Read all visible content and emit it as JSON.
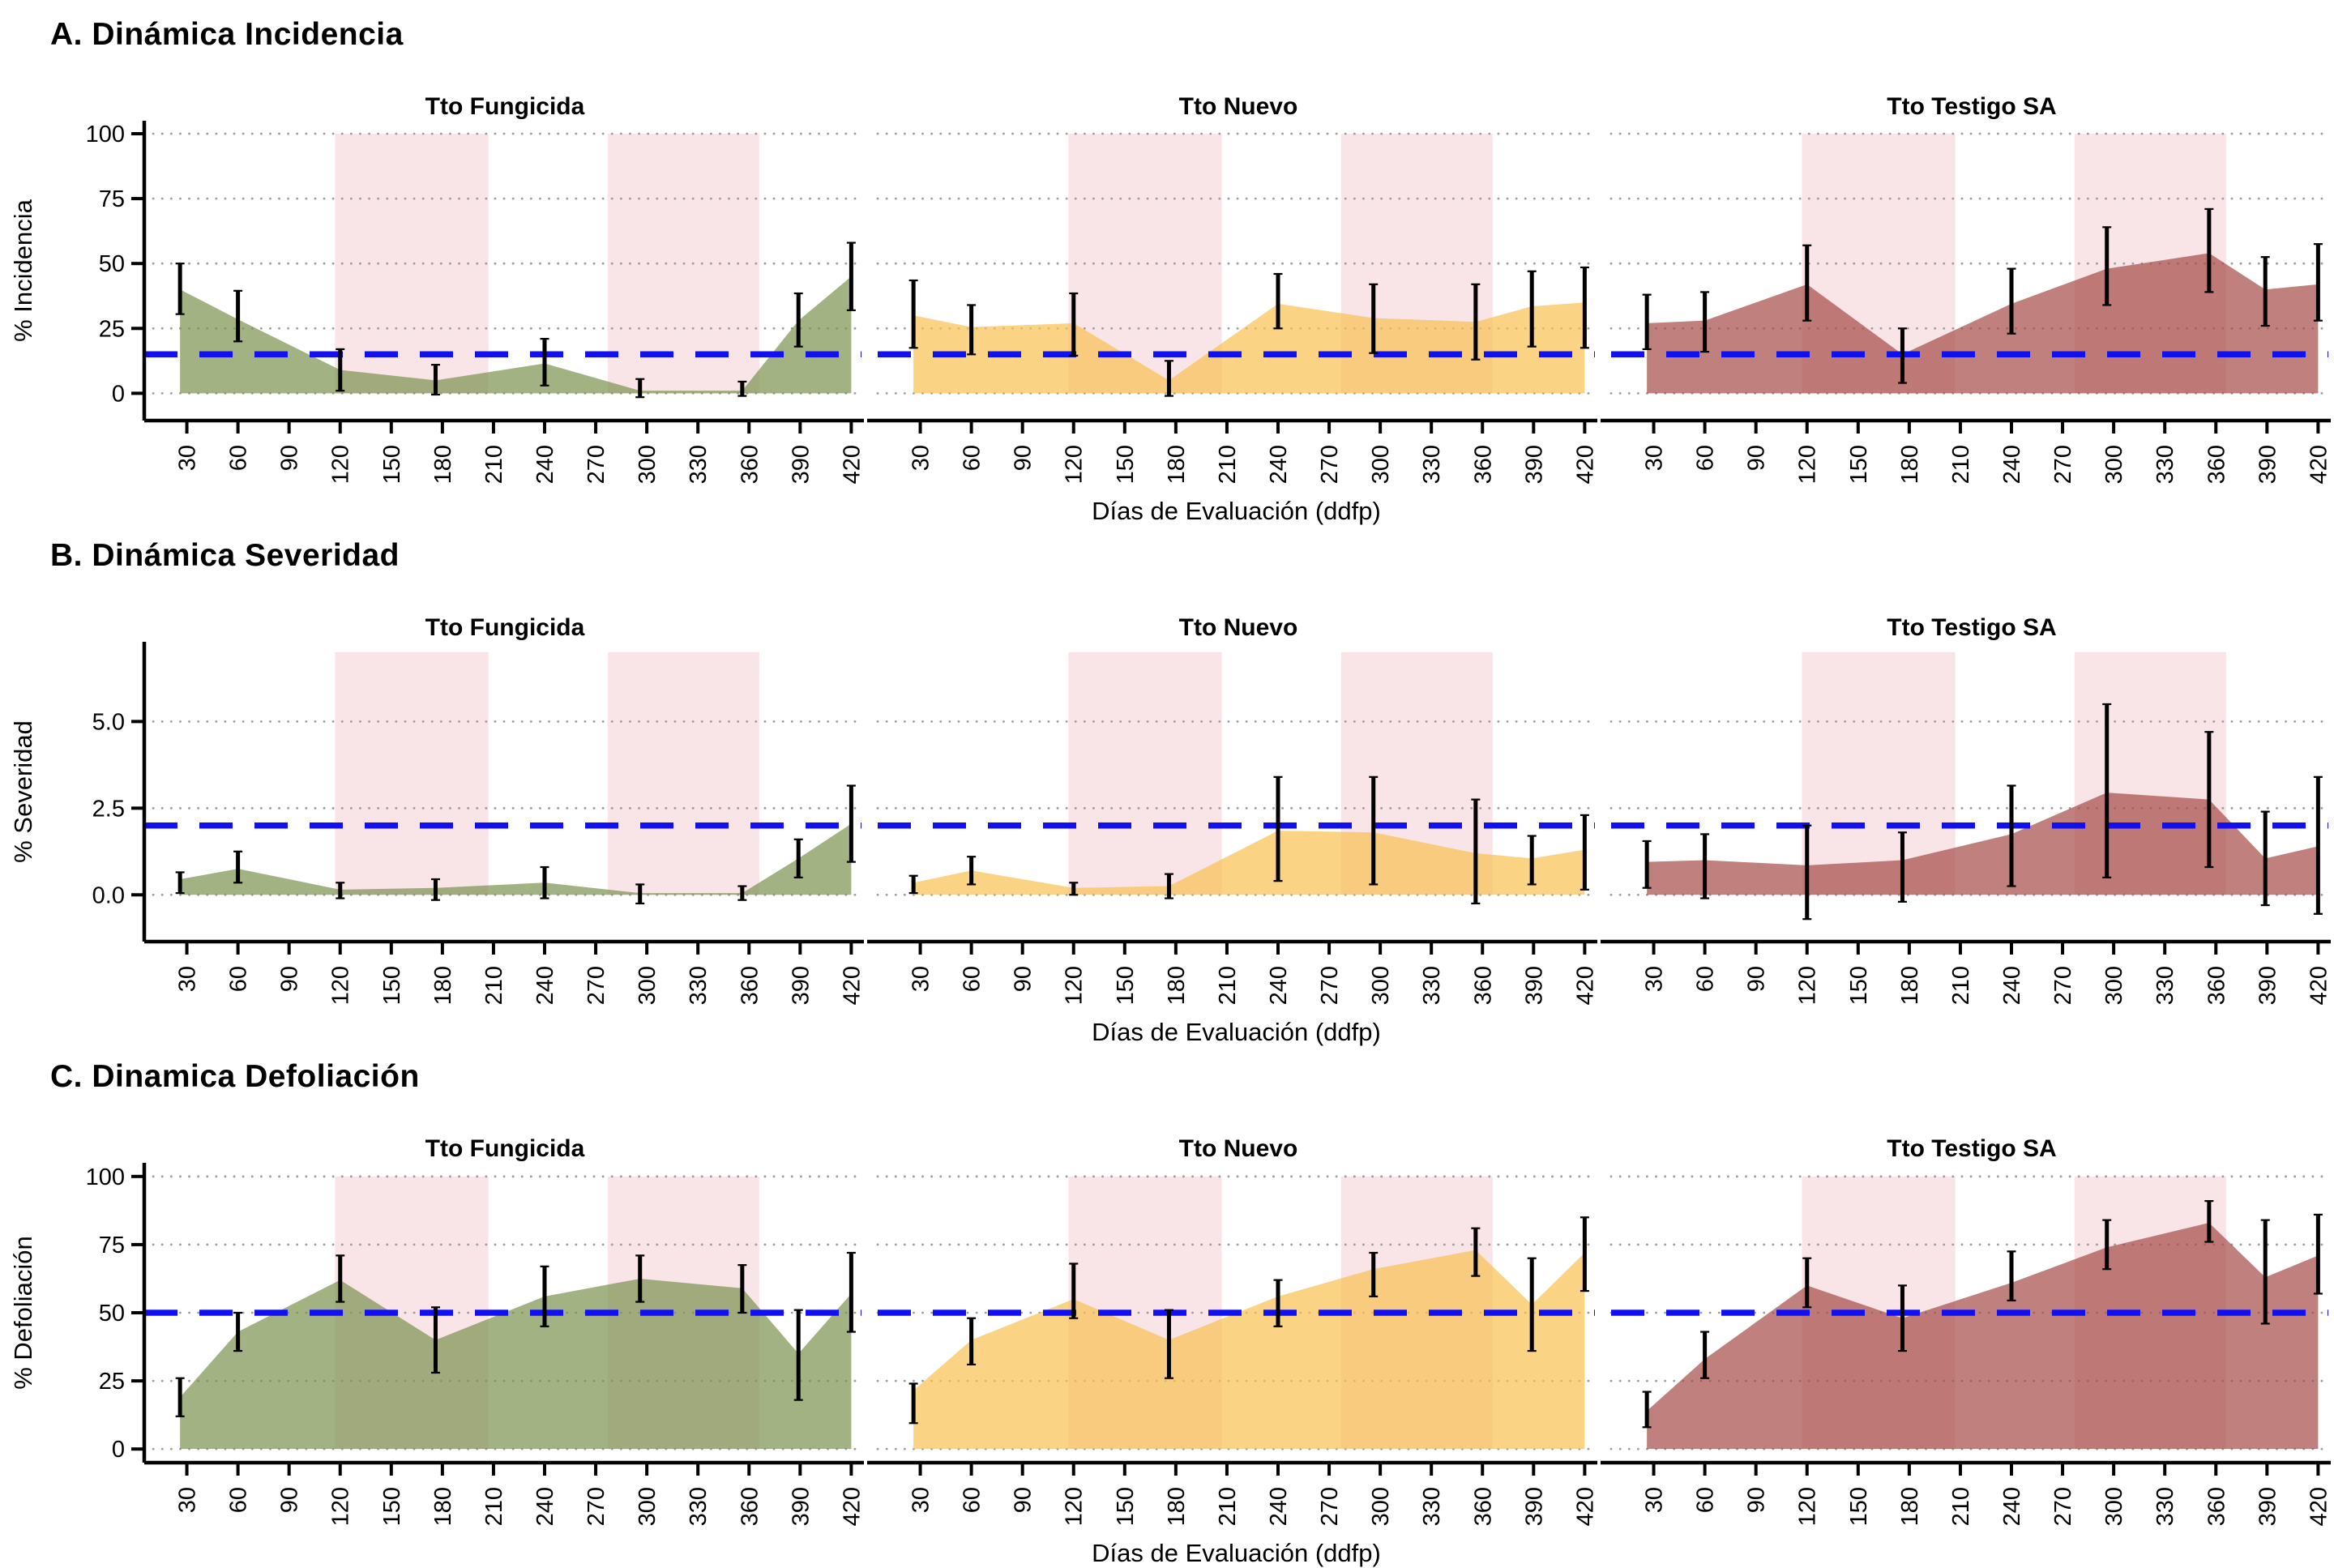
{
  "style": {
    "band_color": "#F9E4E8",
    "reference_color": "#1010F0",
    "grid_color": "#9E9E9E",
    "errorbar_color": "#000000",
    "axis_color": "#000000",
    "fill_opacity": 0.7
  },
  "chart_data": [
    {
      "type": "area",
      "title": "A. Dinámica Incidencia",
      "ylabel": "% Incidencia",
      "xlabel": "Días de Evaluación (ddfp)",
      "x": [
        26,
        60,
        120,
        176,
        240,
        296,
        356,
        389,
        420
      ],
      "x_ticks": [
        30,
        60,
        90,
        120,
        150,
        180,
        210,
        240,
        270,
        300,
        330,
        360,
        390,
        420
      ],
      "xlim": [
        5,
        426
      ],
      "ylim": [
        -10.5,
        105
      ],
      "yticks": [
        0,
        25,
        50,
        75,
        100
      ],
      "ytick_labels": [
        "0",
        "25",
        "50",
        "75",
        "100"
      ],
      "reference_line_y": 15,
      "shaded_x_bands": [
        [
          117,
          207
        ],
        [
          277,
          366
        ]
      ],
      "band_y_range": [
        0,
        100
      ],
      "grid": "dotted horizontal",
      "legend": "none",
      "facets": [
        {
          "name": "Tto Fungicida",
          "fill": "#7C914E",
          "values": [
            40,
            28.5,
            9,
            5,
            11.5,
            1,
            1,
            28,
            45
          ],
          "err_low": [
            30.5,
            20,
            1,
            -0.5,
            3,
            -1.5,
            -1,
            18,
            32
          ],
          "err_high": [
            50,
            39.5,
            17,
            11,
            21,
            5.5,
            4.5,
            38.5,
            58
          ]
        },
        {
          "name": "Tto Nuevo",
          "fill": "#F8C051",
          "values": [
            30,
            25.5,
            27,
            5,
            34.5,
            29,
            27.5,
            33.5,
            35
          ],
          "err_low": [
            17.5,
            15,
            14.5,
            -1,
            25,
            15.5,
            13,
            18,
            17.5
          ],
          "err_high": [
            43.5,
            34,
            38.5,
            12.5,
            46,
            42,
            42,
            47,
            48.5
          ]
        },
        {
          "name": "Tto Testigo SA",
          "fill": "#A54C47",
          "values": [
            27,
            28,
            42,
            15,
            34.5,
            48,
            54,
            40,
            42
          ],
          "err_low": [
            17,
            16,
            28,
            4,
            23,
            34,
            39,
            26,
            28
          ],
          "err_high": [
            38,
            39,
            57,
            25,
            48,
            64,
            71,
            52.5,
            57.5
          ]
        }
      ]
    },
    {
      "type": "area",
      "title": "B. Dinámica Severidad",
      "ylabel": "% Severidad",
      "xlabel": "Días de Evaluación (ddfp)",
      "x": [
        26,
        60,
        120,
        176,
        240,
        296,
        356,
        389,
        420
      ],
      "x_ticks": [
        30,
        60,
        90,
        120,
        150,
        180,
        210,
        240,
        270,
        300,
        330,
        360,
        390,
        420
      ],
      "xlim": [
        5,
        426
      ],
      "ylim": [
        -1.35,
        7.3
      ],
      "yticks": [
        0,
        2.5,
        5
      ],
      "ytick_labels": [
        "0.0",
        "2.5",
        "5.0"
      ],
      "reference_line_y": 2,
      "shaded_x_bands": [
        [
          117,
          207
        ],
        [
          277,
          366
        ]
      ],
      "band_y_range": [
        0,
        7.0
      ],
      "grid": "dotted horizontal",
      "legend": "none",
      "facets": [
        {
          "name": "Tto Fungicida",
          "fill": "#7C914E",
          "values": [
            0.45,
            0.75,
            0.15,
            0.2,
            0.35,
            0.05,
            0.05,
            1.05,
            2.05
          ],
          "err_low": [
            0.05,
            0.35,
            -0.1,
            -0.15,
            -0.1,
            -0.25,
            -0.15,
            0.5,
            0.95
          ],
          "err_high": [
            0.65,
            1.25,
            0.35,
            0.45,
            0.8,
            0.3,
            0.25,
            1.6,
            3.15
          ]
        },
        {
          "name": "Tto Nuevo",
          "fill": "#F8C051",
          "values": [
            0.35,
            0.7,
            0.2,
            0.25,
            1.85,
            1.8,
            1.2,
            1.05,
            1.3
          ],
          "err_low": [
            0.05,
            0.3,
            0.0,
            -0.1,
            0.4,
            0.3,
            -0.25,
            0.3,
            0.15
          ],
          "err_high": [
            0.55,
            1.1,
            0.35,
            0.6,
            3.4,
            3.4,
            2.75,
            1.7,
            2.3
          ]
        },
        {
          "name": "Tto Testigo SA",
          "fill": "#A54C47",
          "values": [
            0.95,
            1.0,
            0.85,
            1.0,
            1.75,
            2.95,
            2.75,
            1.05,
            1.4
          ],
          "err_low": [
            0.2,
            -0.1,
            -0.7,
            -0.2,
            0.25,
            0.5,
            0.8,
            -0.3,
            -0.55
          ],
          "err_high": [
            1.55,
            1.75,
            2.0,
            1.8,
            3.15,
            5.5,
            4.7,
            2.4,
            3.4
          ]
        }
      ]
    },
    {
      "type": "area",
      "title": "C. Dinamica Defoliación",
      "ylabel": "% Defoliación",
      "xlabel": "Días de Evaluación (ddfp)",
      "x": [
        26,
        60,
        120,
        176,
        240,
        296,
        356,
        389,
        420
      ],
      "x_ticks": [
        30,
        60,
        90,
        120,
        150,
        180,
        210,
        240,
        270,
        300,
        330,
        360,
        390,
        420
      ],
      "xlim": [
        5,
        426
      ],
      "ylim": [
        -5,
        105
      ],
      "yticks": [
        0,
        25,
        50,
        75,
        100
      ],
      "ytick_labels": [
        "0",
        "25",
        "50",
        "75",
        "100"
      ],
      "reference_line_y": 50,
      "shaded_x_bands": [
        [
          117,
          207
        ],
        [
          277,
          366
        ]
      ],
      "band_y_range": [
        0,
        100
      ],
      "grid": "dotted horizontal",
      "legend": "none",
      "facets": [
        {
          "name": "Tto Fungicida",
          "fill": "#7C914E",
          "values": [
            19,
            43,
            62,
            40,
            56,
            62.5,
            59,
            35,
            57
          ],
          "err_low": [
            12,
            36,
            54,
            28,
            45,
            54,
            50,
            18,
            43
          ],
          "err_high": [
            26,
            50,
            71,
            52,
            67,
            71,
            67.5,
            51,
            72
          ]
        },
        {
          "name": "Tto Nuevo",
          "fill": "#F8C051",
          "values": [
            21.5,
            40,
            55,
            40,
            56,
            66,
            73,
            53,
            72
          ],
          "err_low": [
            9.5,
            31,
            48,
            26,
            45,
            56,
            63.5,
            36,
            58
          ],
          "err_high": [
            24,
            48,
            68,
            51,
            62,
            72,
            81,
            70,
            85
          ]
        },
        {
          "name": "Tto Testigo SA",
          "fill": "#A54C47",
          "values": [
            14,
            33,
            60,
            48,
            61,
            74,
            83,
            63,
            71
          ],
          "err_low": [
            8,
            26,
            52,
            36,
            54.5,
            66,
            76,
            46,
            57
          ],
          "err_high": [
            21,
            43,
            70,
            60,
            72.5,
            84,
            91,
            84,
            86
          ]
        }
      ]
    }
  ]
}
